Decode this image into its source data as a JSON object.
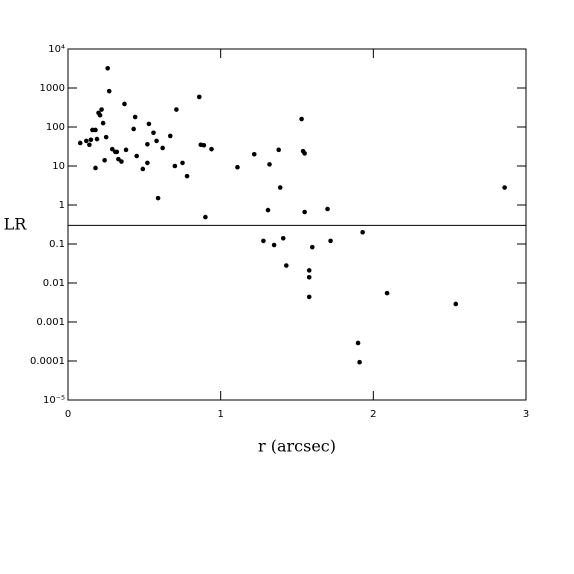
{
  "chart_data": {
    "type": "scatter",
    "x_label": "r (arcsec)",
    "y_label": "LR",
    "log_y": true,
    "color": "#000000",
    "reference_line": 0.3,
    "xlim": [
      0,
      3
    ],
    "xticks": [
      0,
      1,
      2,
      3
    ],
    "ylim": [
      1e-05,
      10000
    ],
    "yticks": [
      {
        "value": 10000,
        "label": "10⁴"
      },
      1000,
      100,
      10,
      1,
      0.1,
      0.01,
      0.001,
      0.0001,
      {
        "value": 1e-05,
        "label": "10⁻⁵"
      }
    ],
    "x": [
      0.08,
      0.12,
      0.14,
      0.15,
      0.16,
      0.18,
      0.18,
      0.19,
      0.2,
      0.21,
      0.22,
      0.23,
      0.24,
      0.25,
      0.26,
      0.27,
      0.29,
      0.31,
      0.32,
      0.33,
      0.35,
      0.37,
      0.38,
      0.43,
      0.44,
      0.45,
      0.49,
      0.52,
      0.52,
      0.53,
      0.56,
      0.58,
      0.59,
      0.62,
      0.67,
      0.7,
      0.71,
      0.75,
      0.78,
      0.86,
      0.87,
      0.89,
      0.9,
      0.94,
      1.11,
      1.22,
      1.28,
      1.31,
      1.32,
      1.35,
      1.38,
      1.39,
      1.41,
      1.43,
      1.53,
      1.54,
      1.55,
      1.55,
      1.58,
      1.58,
      1.58,
      1.6,
      1.7,
      1.72,
      1.93,
      1.9,
      1.91,
      2.09,
      2.54,
      2.86
    ],
    "values": [
      39,
      44,
      35,
      47,
      84,
      84,
      8.9,
      49,
      230,
      200,
      280,
      126,
      14,
      55,
      3200,
      830,
      27,
      23,
      23,
      15,
      13,
      390,
      26,
      89,
      180,
      18,
      8.4,
      36,
      12,
      120,
      71,
      44,
      1.5,
      29,
      59,
      10,
      280,
      12,
      5.5,
      590,
      35,
      34,
      0.49,
      27,
      9.3,
      20,
      0.12,
      0.74,
      11,
      0.094,
      26,
      2.8,
      0.14,
      0.028,
      160,
      24,
      21,
      0.66,
      0.021,
      0.014,
      0.0044,
      0.083,
      0.79,
      0.12,
      0.2,
      0.00029,
      9.3e-05,
      0.0055,
      0.0029,
      2.8
    ]
  }
}
